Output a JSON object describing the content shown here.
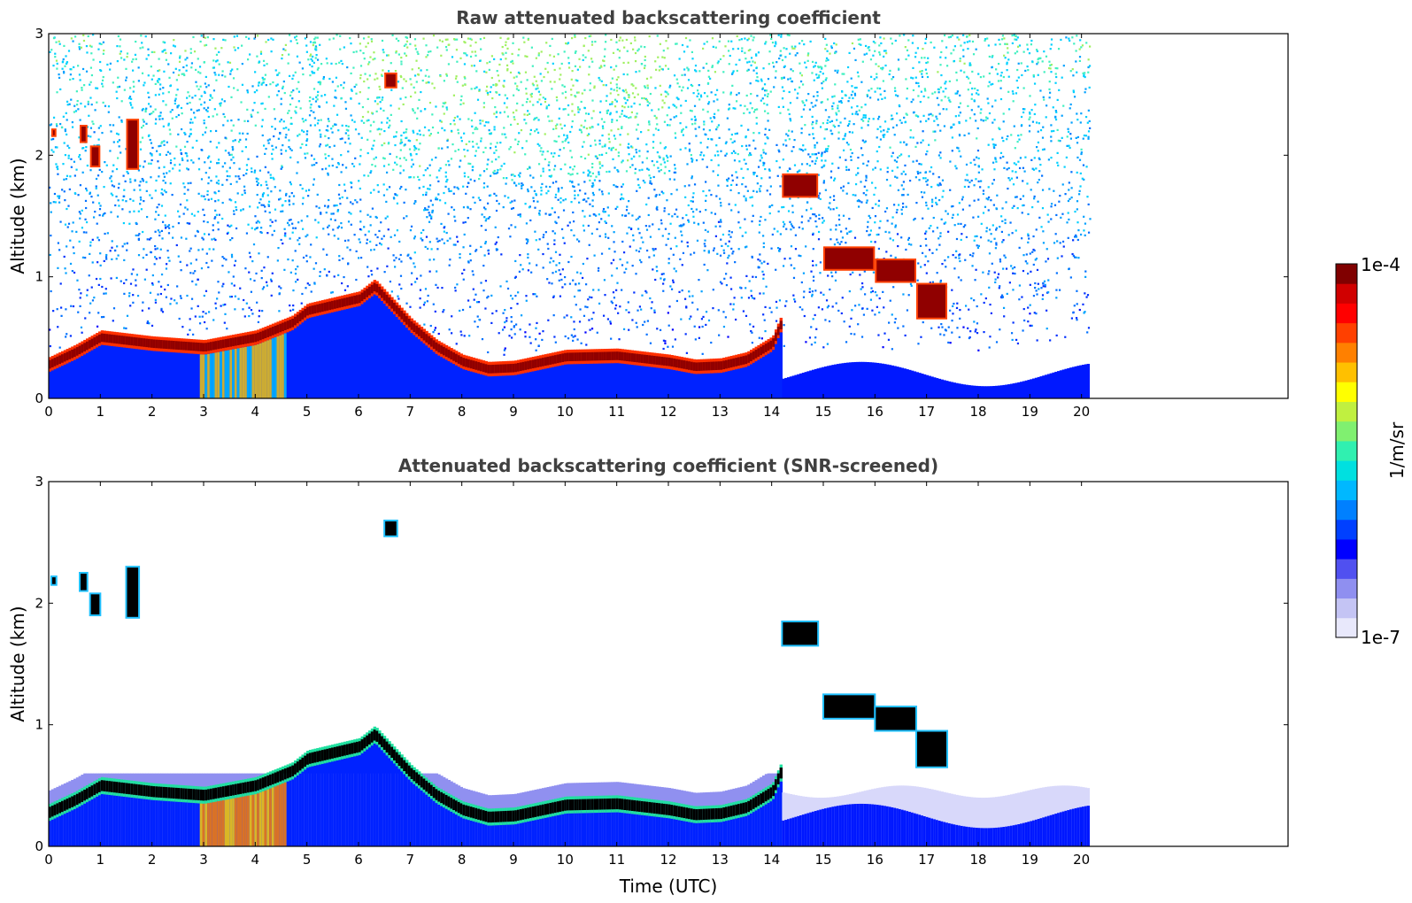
{
  "chart_data": [
    {
      "type": "heatmap",
      "title": "Raw attenuated backscattering coefficient",
      "xlabel": "",
      "ylabel": "Altitude (km)",
      "xlim": [
        0,
        24
      ],
      "ylim": [
        0,
        3
      ],
      "x_ticks": [
        "0",
        "1",
        "2",
        "3",
        "4",
        "5",
        "6",
        "7",
        "8",
        "9",
        "10",
        "11",
        "12",
        "13",
        "14",
        "15",
        "16",
        "17",
        "18",
        "19",
        "20"
      ],
      "y_ticks": [
        "0",
        "1",
        "2",
        "3"
      ],
      "data_end_time": 20.15,
      "boundary_layer_top_km": [
        [
          0,
          0.28
        ],
        [
          0.5,
          0.38
        ],
        [
          1,
          0.5
        ],
        [
          2,
          0.45
        ],
        [
          3,
          0.42
        ],
        [
          4,
          0.5
        ],
        [
          4.7,
          0.62
        ],
        [
          5,
          0.72
        ],
        [
          6,
          0.82
        ],
        [
          6.3,
          0.92
        ],
        [
          7,
          0.6
        ],
        [
          7.5,
          0.42
        ],
        [
          8,
          0.3
        ],
        [
          8.5,
          0.24
        ],
        [
          9,
          0.25
        ],
        [
          10,
          0.34
        ],
        [
          11,
          0.35
        ],
        [
          12,
          0.3
        ],
        [
          12.5,
          0.26
        ],
        [
          13,
          0.27
        ],
        [
          13.5,
          0.32
        ],
        [
          14,
          0.45
        ],
        [
          14.2,
          0.65
        ]
      ],
      "cloud_layers": [
        {
          "t0": 0.05,
          "t1": 0.15,
          "z0": 2.15,
          "z1": 2.22
        },
        {
          "t0": 0.6,
          "t1": 0.75,
          "z0": 2.1,
          "z1": 2.25
        },
        {
          "t0": 0.8,
          "t1": 1.0,
          "z0": 1.9,
          "z1": 2.08
        },
        {
          "t0": 1.5,
          "t1": 1.75,
          "z0": 1.88,
          "z1": 2.3
        },
        {
          "t0": 6.5,
          "t1": 6.75,
          "z0": 2.55,
          "z1": 2.68
        },
        {
          "t0": 14.2,
          "t1": 14.9,
          "z0": 1.65,
          "z1": 1.85
        },
        {
          "t0": 15.0,
          "t1": 16.0,
          "z0": 1.05,
          "z1": 1.25
        },
        {
          "t0": 16.0,
          "t1": 16.8,
          "z0": 0.95,
          "z1": 1.15
        },
        {
          "t0": 16.8,
          "t1": 17.4,
          "z0": 0.65,
          "z1": 0.95
        }
      ]
    },
    {
      "type": "heatmap",
      "title": "Attenuated backscattering coefficient (SNR-screened)",
      "xlabel": "Time (UTC)",
      "ylabel": "Altitude (km)",
      "xlim": [
        0,
        24
      ],
      "ylim": [
        0,
        3
      ],
      "x_ticks": [
        "0",
        "1",
        "2",
        "3",
        "4",
        "5",
        "6",
        "7",
        "8",
        "9",
        "10",
        "11",
        "12",
        "13",
        "14",
        "15",
        "16",
        "17",
        "18",
        "19",
        "20"
      ],
      "y_ticks": [
        "0",
        "1",
        "2",
        "3"
      ],
      "data_end_time": 20.15
    }
  ],
  "colorbar": {
    "label": "1/m/sr",
    "max_label": "1e-4",
    "min_label": "1e-7",
    "colors": [
      "#e8e8fb",
      "#c4c4f4",
      "#8f8ff0",
      "#5050f0",
      "#0000ff",
      "#0040ff",
      "#0080ff",
      "#00b8ff",
      "#00e0e0",
      "#30f0b0",
      "#80f070",
      "#c0f040",
      "#ffff00",
      "#ffc000",
      "#ff8000",
      "#ff4000",
      "#ff0000",
      "#d00000",
      "#800000"
    ]
  },
  "colors": {
    "screened_core": "#000000",
    "noise_blue": "#0000ff",
    "title_gray": "#404040"
  }
}
